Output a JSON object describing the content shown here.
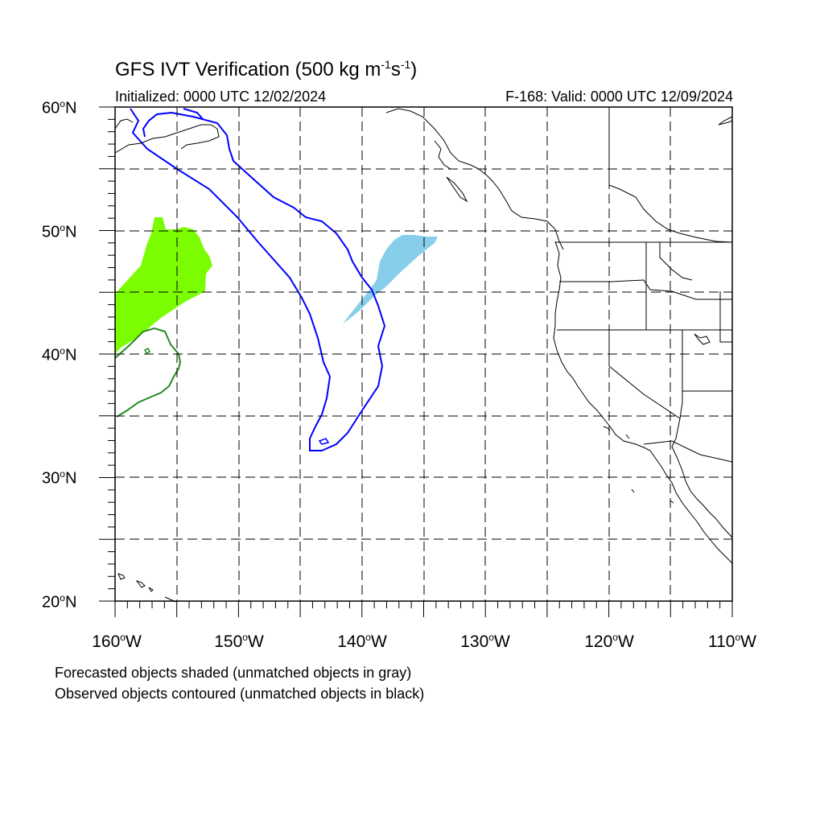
{
  "title": {
    "main": "GFS IVT Verification (500 kg m",
    "exp1": "-1",
    "mid": "s",
    "exp2": "-1",
    "close": ")"
  },
  "initialized": "Initialized: 0000 UTC 12/02/2024",
  "valid": "F-168: Valid: 0000 UTC 12/09/2024",
  "lat_labels": [
    {
      "num": "60",
      "deg": "o",
      "hem": "N"
    },
    {
      "num": "50",
      "deg": "o",
      "hem": "N"
    },
    {
      "num": "40",
      "deg": "o",
      "hem": "N"
    },
    {
      "num": "30",
      "deg": "o",
      "hem": "N"
    },
    {
      "num": "20",
      "deg": "o",
      "hem": "N"
    }
  ],
  "lon_labels": [
    {
      "num": "160",
      "deg": "o",
      "hem": "W"
    },
    {
      "num": "150",
      "deg": "o",
      "hem": "W"
    },
    {
      "num": "140",
      "deg": "o",
      "hem": "W"
    },
    {
      "num": "130",
      "deg": "o",
      "hem": "W"
    },
    {
      "num": "120",
      "deg": "o",
      "hem": "W"
    },
    {
      "num": "110",
      "deg": "o",
      "hem": "W"
    }
  ],
  "notes": {
    "forecast": "Forecasted objects shaded (unmatched objects in gray)",
    "observed": "Observed objects contoured (unmatched objects in black)"
  },
  "colors": {
    "forecast_object_1": "#7cfc00",
    "forecast_object_2": "#87ceeb",
    "observed_object_1": "#228b22",
    "observed_object_2": "#0000ff",
    "coastline": "#000000",
    "grid": "#000000"
  }
}
